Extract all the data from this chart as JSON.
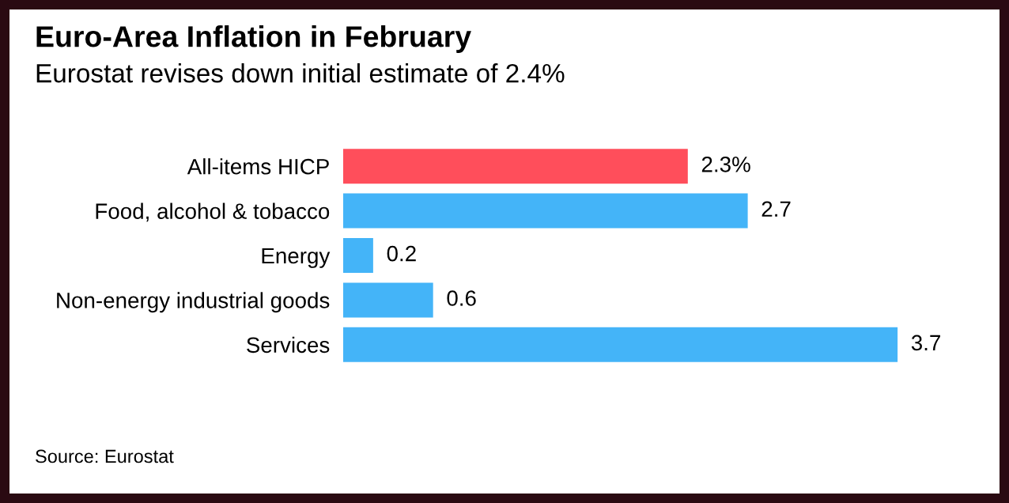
{
  "chart_data": {
    "type": "bar",
    "orientation": "horizontal",
    "title": "Euro-Area Inflation in February",
    "subtitle": "Eurostat revises down initial estimate of 2.4%",
    "categories": [
      "All-items HICP",
      "Food, alcohol & tobacco",
      "Energy",
      "Non-energy industrial goods",
      "Services"
    ],
    "values": [
      2.3,
      2.7,
      0.2,
      0.6,
      3.7
    ],
    "colors": [
      "#ff4e5b",
      "#44b4f8",
      "#44b4f8",
      "#44b4f8",
      "#44b4f8"
    ],
    "value_labels": [
      "2.3%",
      "2.7",
      "0.2",
      "0.6",
      "3.7"
    ],
    "annotations": [
      "Source: Eurostat"
    ],
    "grid": false,
    "legend": false
  }
}
